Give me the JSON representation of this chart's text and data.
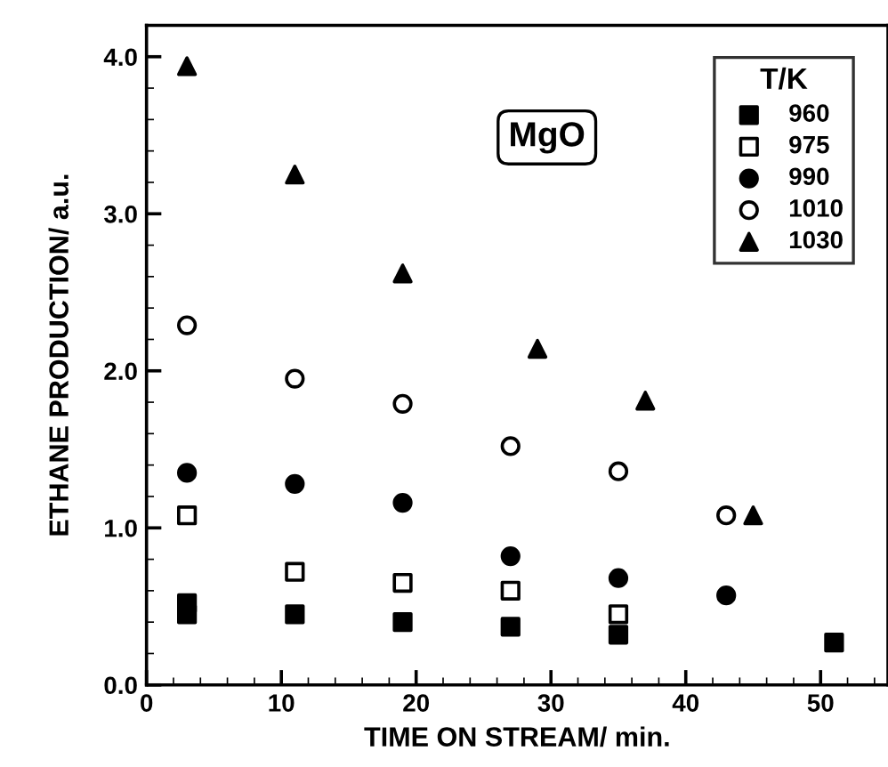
{
  "chart_data": {
    "type": "scatter",
    "xlabel": "TIME ON STREAM/ min.",
    "ylabel": "ETHANE PRODUCTION/ a.u.",
    "legend_title": "T/K",
    "legend": "top right",
    "grid": false,
    "annotations": [
      "MgO"
    ],
    "xlim": [
      0,
      55
    ],
    "xticks": [
      0,
      10,
      20,
      30,
      40,
      50
    ],
    "ylim": [
      0,
      4.2
    ],
    "yticks": [
      {
        "value": 0,
        "label": "0.0"
      },
      {
        "value": 1,
        "label": "1.0"
      },
      {
        "value": 2,
        "label": "2.0"
      },
      {
        "value": 3,
        "label": "3.0"
      },
      {
        "value": 4,
        "label": "4.0"
      }
    ],
    "series": [
      {
        "name": "960",
        "color": "#000000",
        "marker": "square",
        "x": [
          3,
          3,
          11,
          19,
          27,
          35,
          51
        ],
        "values": [
          0.52,
          0.45,
          0.45,
          0.4,
          0.37,
          0.32,
          0.27
        ]
      },
      {
        "name": "975",
        "color": "#000000",
        "marker": "square-open",
        "x": [
          3,
          11,
          19,
          27,
          35
        ],
        "values": [
          1.08,
          0.72,
          0.65,
          0.6,
          0.45
        ]
      },
      {
        "name": "990",
        "color": "#000000",
        "marker": "circle",
        "x": [
          3,
          11,
          19,
          27,
          35,
          43
        ],
        "values": [
          1.35,
          1.28,
          1.16,
          0.82,
          0.68,
          0.57
        ]
      },
      {
        "name": "1010",
        "color": "#000000",
        "marker": "circle-open",
        "x": [
          3,
          11,
          19,
          27,
          35,
          43
        ],
        "values": [
          2.29,
          1.95,
          1.79,
          1.52,
          1.36,
          1.08
        ]
      },
      {
        "name": "1030",
        "color": "#000000",
        "marker": "triangle",
        "x": [
          3,
          11,
          19,
          29,
          37,
          45
        ],
        "values": [
          3.94,
          3.25,
          2.62,
          2.14,
          1.81,
          1.08
        ]
      }
    ]
  }
}
